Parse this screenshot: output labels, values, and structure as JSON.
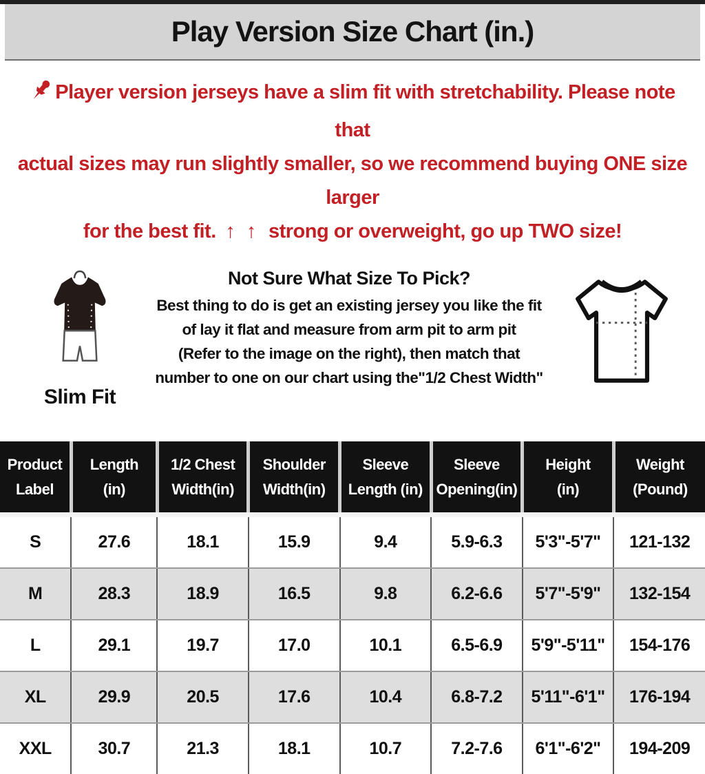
{
  "title": "Play Version Size Chart (in.)",
  "notice": {
    "line1": "Player version jerseys have a slim fit with stretchability. Please note that",
    "line2": "actual sizes may run slightly smaller, so we recommend buying ONE size larger",
    "line3_prefix": "for the best fit.",
    "arrows": "↑ ↑",
    "line3_suffix": "strong or overweight, go up TWO size!"
  },
  "guide": {
    "slim_fit_label": "Slim Fit",
    "heading": "Not Sure What Size To Pick?",
    "lines": [
      "Best thing to do is get an existing jersey you like the fit",
      "of lay it flat and measure from arm pit to arm pit",
      "(Refer to the image on the right), then match that",
      "number to one on our chart using the\"1/2 Chest Width\""
    ]
  },
  "icons": {
    "pushpin": "red pushpin",
    "up_arrow": "↑",
    "slim_fit_figure": "mannequin wearing dark slim t-shirt and white shorts",
    "tshirt_diagram": "t-shirt outline with dotted chest-width and length measurement lines"
  },
  "colors": {
    "accent_red": "#c32026",
    "title_bar_bg": "#d4d4d4",
    "header_bg": "#121212",
    "header_text": "#ffffff",
    "row_alt_bg": "#dedede",
    "text": "#111111"
  },
  "chart_data": {
    "type": "table",
    "title": "Play Version Size Chart (in.)",
    "headers": [
      "Product\nLabel",
      "Length\n(in)",
      "1/2 Chest\nWidth(in)",
      "Shoulder\nWidth(in)",
      "Sleeve\nLength (in)",
      "Sleeve\nOpening(in)",
      "Height\n(in)",
      "Weight\n(Pound)"
    ],
    "rows": [
      [
        "S",
        "27.6",
        "18.1",
        "15.9",
        "9.4",
        "5.9-6.3",
        "5'3\"-5'7\"",
        "121-132"
      ],
      [
        "M",
        "28.3",
        "18.9",
        "16.5",
        "9.8",
        "6.2-6.6",
        "5'7\"-5'9\"",
        "132-154"
      ],
      [
        "L",
        "29.1",
        "19.7",
        "17.0",
        "10.1",
        "6.5-6.9",
        "5'9\"-5'11\"",
        "154-176"
      ],
      [
        "XL",
        "29.9",
        "20.5",
        "17.6",
        "10.4",
        "6.8-7.2",
        "5'11\"-6'1\"",
        "176-194"
      ],
      [
        "XXL",
        "30.7",
        "21.3",
        "18.1",
        "10.7",
        "7.2-7.6",
        "6'1\"-6'2\"",
        "194-209"
      ]
    ]
  }
}
